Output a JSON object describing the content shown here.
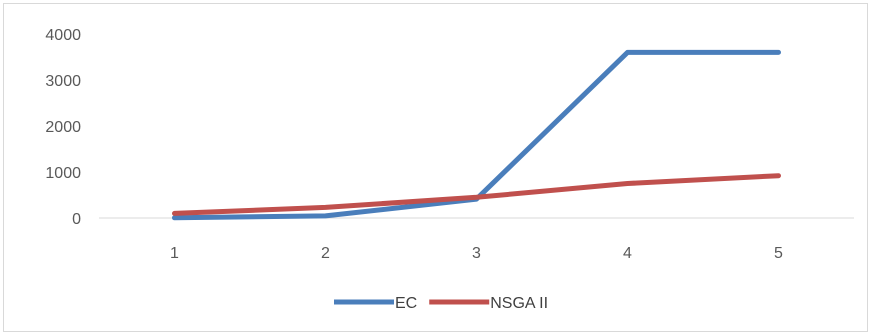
{
  "chart_data": {
    "type": "line",
    "categories": [
      "1",
      "2",
      "3",
      "4",
      "5"
    ],
    "series": [
      {
        "name": "EC",
        "color": "#4a7ebb",
        "values": [
          5,
          45,
          410,
          3600,
          3600
        ]
      },
      {
        "name": "NSGA II",
        "color": "#c0504d",
        "values": [
          100,
          230,
          450,
          750,
          920
        ]
      }
    ],
    "y_ticks": [
      0,
      1000,
      2000,
      3000,
      4000
    ],
    "ylim": [
      0,
      4000
    ],
    "grid": false,
    "legend_position": "bottom"
  }
}
